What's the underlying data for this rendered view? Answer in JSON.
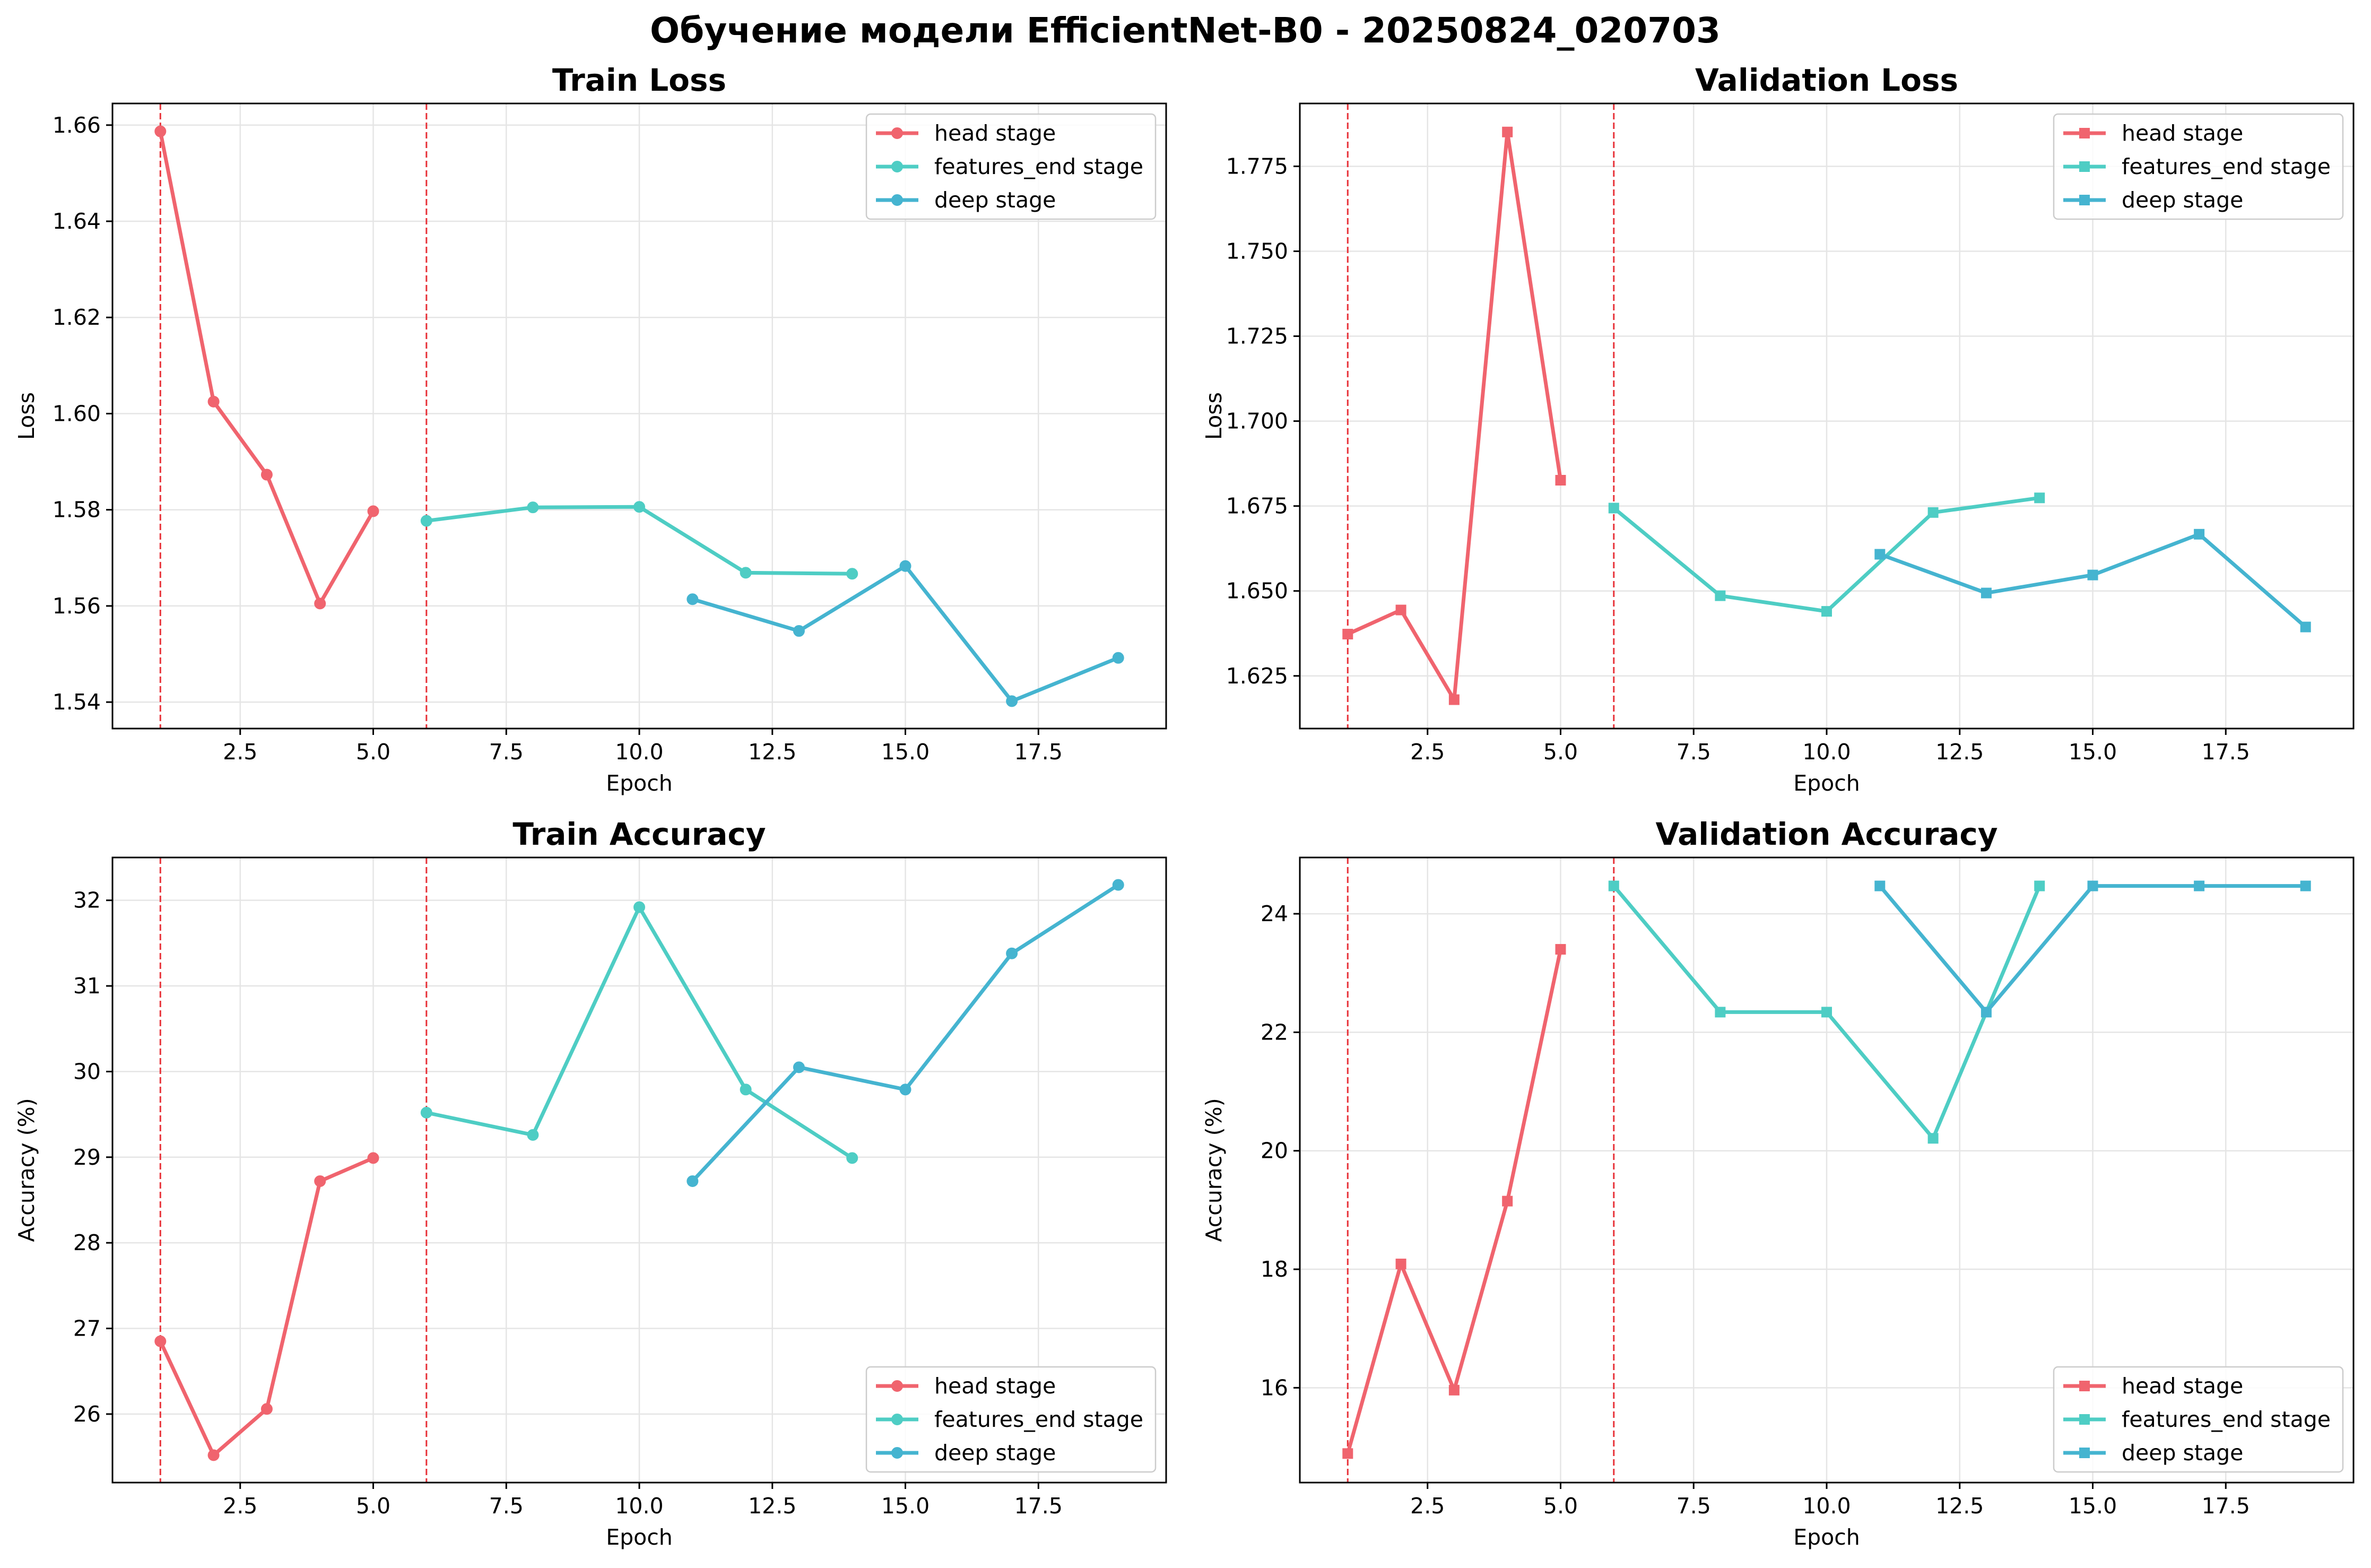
{
  "figure": {
    "title": "Обучение модели EfficientNet-B0 - 20250824_020703"
  },
  "colors": {
    "head": "#f0646e",
    "features_end": "#4ecdc4",
    "deep": "#45b4d0",
    "vline": "#e8333a",
    "grid": "#e5e5e5",
    "axes": "#000000"
  },
  "stage_boundaries": [
    1,
    6
  ],
  "chart_data": [
    {
      "id": "train_loss",
      "type": "line",
      "title": "Train Loss",
      "xlabel": "Epoch",
      "ylabel": "Loss",
      "xlim": [
        0.1,
        19.9
      ],
      "ylim": [
        1.5345,
        1.6645
      ],
      "xticks": [
        2.5,
        5.0,
        7.5,
        10.0,
        12.5,
        15.0,
        17.5
      ],
      "xtick_labels": [
        "2.5",
        "5.0",
        "7.5",
        "10.0",
        "12.5",
        "15.0",
        "17.5"
      ],
      "yticks": [
        1.54,
        1.56,
        1.58,
        1.6,
        1.62,
        1.64,
        1.66
      ],
      "ytick_labels": [
        "1.54",
        "1.56",
        "1.58",
        "1.60",
        "1.62",
        "1.64",
        "1.66"
      ],
      "marker": "circle",
      "legend": "top-right",
      "series": [
        {
          "name": "head stage",
          "color_key": "head",
          "x": [
            1,
            2,
            3,
            4,
            5
          ],
          "y": [
            1.6587,
            1.6025,
            1.5873,
            1.5605,
            1.5797
          ]
        },
        {
          "name": "features_end stage",
          "color_key": "features_end",
          "x": [
            6,
            8,
            10,
            12,
            14
          ],
          "y": [
            1.5777,
            1.5805,
            1.5806,
            1.5669,
            1.5667
          ]
        },
        {
          "name": "deep stage",
          "color_key": "deep",
          "x": [
            11,
            13,
            15,
            17,
            19
          ],
          "y": [
            1.5614,
            1.5548,
            1.5683,
            1.5402,
            1.5492
          ]
        }
      ]
    },
    {
      "id": "val_loss",
      "type": "line",
      "title": "Validation Loss",
      "xlabel": "Epoch",
      "ylabel": "Loss",
      "xlim": [
        0.1,
        19.9
      ],
      "ylim": [
        1.6095,
        1.7935
      ],
      "xticks": [
        2.5,
        5.0,
        7.5,
        10.0,
        12.5,
        15.0,
        17.5
      ],
      "xtick_labels": [
        "2.5",
        "5.0",
        "7.5",
        "10.0",
        "12.5",
        "15.0",
        "17.5"
      ],
      "yticks": [
        1.625,
        1.65,
        1.675,
        1.7,
        1.725,
        1.75,
        1.775
      ],
      "ytick_labels": [
        "1.625",
        "1.650",
        "1.675",
        "1.700",
        "1.725",
        "1.750",
        "1.775"
      ],
      "marker": "square",
      "legend": "top-right",
      "series": [
        {
          "name": "head stage",
          "color_key": "head",
          "x": [
            1,
            2,
            3,
            4,
            5
          ],
          "y": [
            1.6373,
            1.6444,
            1.618,
            1.7851,
            1.6826
          ]
        },
        {
          "name": "features_end stage",
          "color_key": "features_end",
          "x": [
            6,
            8,
            10,
            12,
            14
          ],
          "y": [
            1.6744,
            1.6486,
            1.644,
            1.6731,
            1.6774
          ]
        },
        {
          "name": "deep stage",
          "color_key": "deep",
          "x": [
            11,
            13,
            15,
            17,
            19
          ],
          "y": [
            1.6608,
            1.6494,
            1.6547,
            1.6667,
            1.6394
          ]
        }
      ]
    },
    {
      "id": "train_acc",
      "type": "line",
      "title": "Train Accuracy",
      "xlabel": "Epoch",
      "ylabel": "Accuracy (%)",
      "xlim": [
        0.1,
        19.9
      ],
      "ylim": [
        25.2,
        32.5
      ],
      "xticks": [
        2.5,
        5.0,
        7.5,
        10.0,
        12.5,
        15.0,
        17.5
      ],
      "xtick_labels": [
        "2.5",
        "5.0",
        "7.5",
        "10.0",
        "12.5",
        "15.0",
        "17.5"
      ],
      "yticks": [
        26,
        27,
        28,
        29,
        30,
        31,
        32
      ],
      "ytick_labels": [
        "26",
        "27",
        "28",
        "29",
        "30",
        "31",
        "32"
      ],
      "marker": "circle",
      "legend": "bottom-right",
      "series": [
        {
          "name": "head stage",
          "color_key": "head",
          "x": [
            1,
            2,
            3,
            4,
            5
          ],
          "y": [
            26.85,
            25.52,
            26.06,
            28.72,
            28.99
          ]
        },
        {
          "name": "features_end stage",
          "color_key": "features_end",
          "x": [
            6,
            8,
            10,
            12,
            14
          ],
          "y": [
            29.52,
            29.26,
            31.92,
            29.79,
            28.99
          ]
        },
        {
          "name": "deep stage",
          "color_key": "deep",
          "x": [
            11,
            13,
            15,
            17,
            19
          ],
          "y": [
            28.72,
            30.05,
            29.79,
            31.38,
            32.18
          ]
        }
      ]
    },
    {
      "id": "val_acc",
      "type": "line",
      "title": "Validation Accuracy",
      "xlabel": "Epoch",
      "ylabel": "Accuracy (%)",
      "xlim": [
        0.1,
        19.9
      ],
      "ylim": [
        14.4,
        24.95
      ],
      "xticks": [
        2.5,
        5.0,
        7.5,
        10.0,
        12.5,
        15.0,
        17.5
      ],
      "xtick_labels": [
        "2.5",
        "5.0",
        "7.5",
        "10.0",
        "12.5",
        "15.0",
        "17.5"
      ],
      "yticks": [
        16,
        18,
        20,
        22,
        24
      ],
      "ytick_labels": [
        "16",
        "18",
        "20",
        "22",
        "24"
      ],
      "marker": "square",
      "legend": "bottom-right",
      "series": [
        {
          "name": "head stage",
          "color_key": "head",
          "x": [
            1,
            2,
            3,
            4,
            5
          ],
          "y": [
            14.89,
            18.09,
            15.96,
            19.15,
            23.4
          ]
        },
        {
          "name": "features_end stage",
          "color_key": "features_end",
          "x": [
            6,
            8,
            10,
            12,
            14
          ],
          "y": [
            24.47,
            22.34,
            22.34,
            20.21,
            24.47
          ]
        },
        {
          "name": "deep stage",
          "color_key": "deep",
          "x": [
            11,
            13,
            15,
            17,
            19
          ],
          "y": [
            24.47,
            22.34,
            24.47,
            24.47,
            24.47
          ]
        }
      ]
    }
  ]
}
